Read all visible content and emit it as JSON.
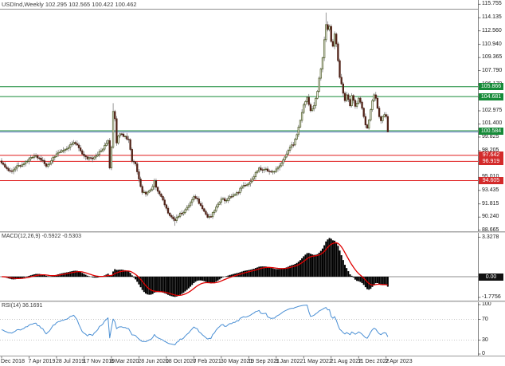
{
  "window": {
    "title_line": "USDInd,Weekly  102.295 102.565 100.422 100.462"
  },
  "macd_panel": {
    "label": "MACD(12,26,9) -0.5922 -0.5303",
    "axis_top": "3.3278",
    "axis_bottom": "-1.7756",
    "zero_box": "0.00"
  },
  "rsi_panel": {
    "label": "RSI(14) 36.1691",
    "axis_labels": [
      "100",
      "70",
      "30",
      "0"
    ]
  },
  "price_axis": {
    "ticks": [
      "115.755",
      "114.135",
      "112.560",
      "110.940",
      "109.365",
      "107.790",
      "106.170",
      "104.595",
      "102.975",
      "101.400",
      "99.825",
      "98.205",
      "96.630",
      "95.010",
      "93.435",
      "91.815",
      "90.240",
      "88.665"
    ]
  },
  "time_axis": {
    "labels": [
      "Dec 2018",
      "7 Apr 2019",
      "28 Jul 2019",
      "17 Nov 2019",
      "8 Mar 2020",
      "28 Jun 2020",
      "18 Oct 2020",
      "7 Feb 2021",
      "30 May 2021",
      "19 Sep 2021",
      "9 Jan 2022",
      "1 May 2022",
      "21 Aug 2022",
      "11 Dec 2022",
      "2 Apr 2023"
    ],
    "weeks_per_label": 16
  },
  "colors": {
    "green_level": "#168a38",
    "red_level": "#e01f1f",
    "blue_line": "#6b7ec9",
    "macd_histogram": "#000000",
    "macd_signal": "#e00000",
    "rsi_line": "#4a8fd4",
    "candle_up_fill": "#ffffff",
    "candle_up_stroke": "#49571f",
    "candle_down_fill": "#512318",
    "wick": "#6e6e6e",
    "zero_box_bg": "#111111",
    "axis_line": "#808080",
    "dotted_level": "#b5b5b5"
  },
  "chart_data": {
    "type": "candlestick",
    "symbol": "USDInd",
    "timeframe": "Weekly",
    "title": "USDInd,Weekly",
    "last_candle_ohlc": {
      "open": 102.295,
      "high": 102.565,
      "low": 100.422,
      "close": 100.462
    },
    "y_axis_range": [
      88.665,
      115.755
    ],
    "y_ticks": [
      115.755,
      114.135,
      112.56,
      110.94,
      109.365,
      107.79,
      106.17,
      104.595,
      102.975,
      101.4,
      99.825,
      98.205,
      96.63,
      95.01,
      93.435,
      91.815,
      90.24,
      88.665
    ],
    "x_labels": [
      "Dec 2018",
      "7 Apr 2019",
      "28 Jul 2019",
      "17 Nov 2019",
      "8 Mar 2020",
      "28 Jun 2020",
      "18 Oct 2020",
      "7 Feb 2021",
      "30 May 2021",
      "19 Sep 2021",
      "9 Jan 2022",
      "1 May 2022",
      "21 Aug 2022",
      "11 Dec 2022",
      "2 Apr 2023"
    ],
    "horizontal_levels": [
      {
        "price": 105.866,
        "color": "green"
      },
      {
        "price": 104.681,
        "color": "green"
      },
      {
        "price": 100.584,
        "color": "green"
      },
      {
        "price": 97.642,
        "color": "red"
      },
      {
        "price": 96.919,
        "color": "red"
      },
      {
        "price": 94.605,
        "color": "red"
      },
      {
        "price": 100.44,
        "color": "blue"
      }
    ],
    "weekly_close_anchors": [
      [
        0,
        96.7
      ],
      [
        2,
        96.2
      ],
      [
        4,
        95.8
      ],
      [
        6,
        95.7
      ],
      [
        8,
        96.1
      ],
      [
        10,
        96.4
      ],
      [
        12,
        96.5
      ],
      [
        14,
        96.9
      ],
      [
        16,
        97.2
      ],
      [
        18,
        97.4
      ],
      [
        20,
        97.6
      ],
      [
        22,
        97.3
      ],
      [
        24,
        97.0
      ],
      [
        26,
        96.3
      ],
      [
        28,
        96.7
      ],
      [
        30,
        97.4
      ],
      [
        32,
        97.8
      ],
      [
        34,
        98.0
      ],
      [
        36,
        98.2
      ],
      [
        38,
        98.4
      ],
      [
        40,
        98.9
      ],
      [
        42,
        99.2
      ],
      [
        44,
        98.9
      ],
      [
        46,
        98.2
      ],
      [
        48,
        97.6
      ],
      [
        50,
        97.2
      ],
      [
        52,
        97.3
      ],
      [
        54,
        97.4
      ],
      [
        56,
        97.7
      ],
      [
        58,
        98.2
      ],
      [
        60,
        98.8
      ],
      [
        62,
        99.4
      ],
      [
        63,
        96.1
      ],
      [
        64,
        98.6
      ],
      [
        65,
        102.9
      ],
      [
        66,
        102.0
      ],
      [
        67,
        99.1
      ],
      [
        68,
        100.0
      ],
      [
        70,
        100.2
      ],
      [
        72,
        99.9
      ],
      [
        74,
        99.5
      ],
      [
        76,
        96.9
      ],
      [
        78,
        96.6
      ],
      [
        80,
        94.8
      ],
      [
        82,
        93.2
      ],
      [
        84,
        93.0
      ],
      [
        86,
        93.4
      ],
      [
        88,
        93.9
      ],
      [
        89,
        94.6
      ],
      [
        90,
        93.8
      ],
      [
        92,
        93.0
      ],
      [
        94,
        92.3
      ],
      [
        96,
        91.3
      ],
      [
        98,
        90.4
      ],
      [
        100,
        90.0
      ],
      [
        101,
        89.8
      ],
      [
        102,
        90.2
      ],
      [
        104,
        90.7
      ],
      [
        106,
        90.8
      ],
      [
        108,
        91.4
      ],
      [
        110,
        92.0
      ],
      [
        112,
        92.7
      ],
      [
        114,
        92.4
      ],
      [
        116,
        91.6
      ],
      [
        118,
        90.9
      ],
      [
        120,
        90.2
      ],
      [
        122,
        90.3
      ],
      [
        124,
        91.0
      ],
      [
        126,
        91.8
      ],
      [
        128,
        92.4
      ],
      [
        130,
        92.2
      ],
      [
        132,
        92.5
      ],
      [
        134,
        92.7
      ],
      [
        136,
        92.9
      ],
      [
        138,
        93.2
      ],
      [
        140,
        93.9
      ],
      [
        142,
        94.0
      ],
      [
        144,
        94.3
      ],
      [
        146,
        94.8
      ],
      [
        148,
        95.6
      ],
      [
        150,
        96.1
      ],
      [
        152,
        95.9
      ],
      [
        154,
        96.0
      ],
      [
        156,
        95.7
      ],
      [
        158,
        95.7
      ],
      [
        160,
        96.0
      ],
      [
        162,
        96.4
      ],
      [
        164,
        97.1
      ],
      [
        166,
        97.8
      ],
      [
        168,
        98.6
      ],
      [
        170,
        98.9
      ],
      [
        172,
        100.1
      ],
      [
        174,
        101.8
      ],
      [
        176,
        103.7
      ],
      [
        178,
        104.6
      ],
      [
        180,
        103.0
      ],
      [
        182,
        103.6
      ],
      [
        184,
        105.3
      ],
      [
        185,
        106.9
      ],
      [
        186,
        108.0
      ],
      [
        187,
        109.3
      ],
      [
        188,
        111.5
      ],
      [
        189,
        113.3
      ],
      [
        190,
        112.7
      ],
      [
        191,
        113.1
      ],
      [
        192,
        111.3
      ],
      [
        193,
        110.7
      ],
      [
        194,
        112.2
      ],
      [
        195,
        111.0
      ],
      [
        196,
        109.0
      ],
      [
        197,
        107.0
      ],
      [
        198,
        106.2
      ],
      [
        199,
        105.1
      ],
      [
        200,
        104.2
      ],
      [
        201,
        104.9
      ],
      [
        202,
        104.3
      ],
      [
        203,
        103.6
      ],
      [
        204,
        104.8
      ],
      [
        205,
        104.2
      ],
      [
        206,
        103.5
      ],
      [
        207,
        103.9
      ],
      [
        208,
        104.5
      ],
      [
        209,
        104.0
      ],
      [
        210,
        103.3
      ],
      [
        211,
        102.3
      ],
      [
        212,
        101.3
      ],
      [
        213,
        100.9
      ],
      [
        214,
        101.9
      ],
      [
        215,
        103.1
      ],
      [
        216,
        104.2
      ],
      [
        217,
        104.9
      ],
      [
        218,
        104.5
      ],
      [
        219,
        103.3
      ],
      [
        220,
        102.3
      ],
      [
        221,
        101.8
      ],
      [
        222,
        102.3
      ],
      [
        223,
        102.5
      ],
      [
        224,
        102.295
      ],
      [
        225,
        100.462
      ]
    ],
    "forced_extremes": [
      {
        "week": 189,
        "high": 114.75
      },
      {
        "week": 65,
        "high": 103.9
      },
      {
        "week": 101,
        "low": 89.2
      },
      {
        "week": 213,
        "low": 100.82
      },
      {
        "week": 225,
        "high": 102.565,
        "low": 100.422
      }
    ],
    "indicators": [
      {
        "type": "macd",
        "params": [
          12,
          26,
          9
        ],
        "current_main": -0.5922,
        "current_signal": -0.5303,
        "pane_axis_max": 3.3278,
        "pane_axis_min": -1.7756
      },
      {
        "type": "rsi",
        "params": [
          14
        ],
        "current": 36.1691,
        "levels": [
          70,
          30
        ],
        "axis": [
          0,
          100
        ]
      }
    ]
  }
}
